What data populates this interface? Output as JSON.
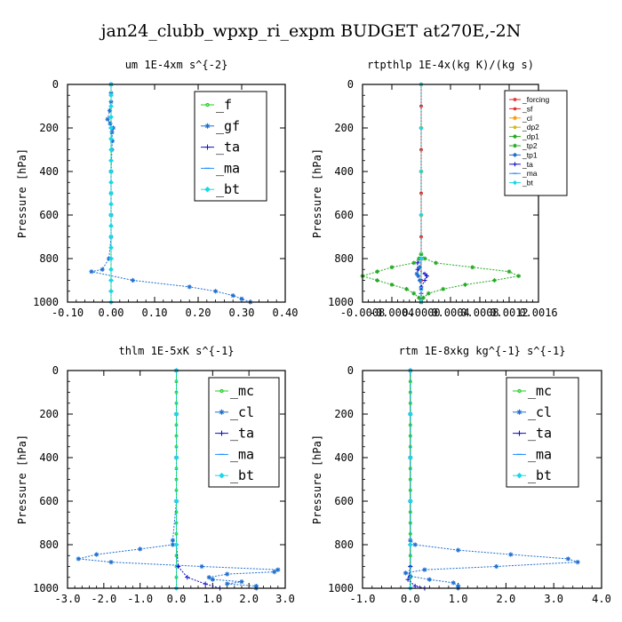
{
  "figure": {
    "title": "jan24_clubb_wpxp_ri_expm  BUDGET at270E,-2N"
  },
  "chart_data": [
    {
      "id": "um",
      "type": "line",
      "title": "um   1E-4xm s^{-2}",
      "ylabel": "Pressure [hPa]",
      "xlim": [
        -0.1,
        0.4
      ],
      "ylim": [
        1000,
        0
      ],
      "xticks": [
        "-0.10",
        "0.00",
        "0.10",
        "0.20",
        "0.30",
        "0.40"
      ],
      "xtick_values": [
        -0.1,
        0.0,
        0.1,
        0.2,
        0.3,
        0.4
      ],
      "yticks": [
        "0",
        "200",
        "400",
        "600",
        "800",
        "1000"
      ],
      "ytick_values": [
        0,
        200,
        400,
        600,
        800,
        1000
      ],
      "legend": {
        "style": "big",
        "placement": "top-right"
      },
      "series": [
        {
          "name": "_f",
          "color": "#22cc22",
          "marker": "circle",
          "p": [
            0,
            50,
            100,
            150,
            200,
            250,
            300,
            350,
            400,
            450,
            500,
            550,
            600,
            650,
            700,
            750,
            800,
            850,
            900,
            950,
            1000
          ],
          "v": [
            0,
            0,
            0,
            0,
            0,
            0,
            0,
            0,
            0,
            0,
            0,
            0,
            0,
            0,
            0,
            0,
            0,
            0,
            0,
            0,
            0
          ]
        },
        {
          "name": "_gf",
          "color": "#1e6fd0",
          "marker": "star",
          "p": [
            0,
            40,
            80,
            120,
            160,
            180,
            200,
            220,
            260,
            300,
            400,
            500,
            600,
            700,
            800,
            850,
            860,
            900,
            930,
            950,
            970,
            985,
            1000
          ],
          "v": [
            0.0,
            0.0,
            0.0,
            -0.003,
            -0.008,
            -0.002,
            0.005,
            0.002,
            0.003,
            0.002,
            0.0,
            0.0,
            0.0,
            0.0,
            -0.005,
            -0.02,
            -0.045,
            0.05,
            0.18,
            0.24,
            0.28,
            0.3,
            0.32
          ]
        },
        {
          "name": "_ta",
          "color": "#1010c8",
          "marker": "plus",
          "p": [
            0,
            200,
            400,
            600,
            800,
            900,
            950,
            1000
          ],
          "v": [
            0,
            0,
            0,
            0,
            0,
            0,
            0,
            0
          ]
        },
        {
          "name": "_ma",
          "color": "#1e90ff",
          "marker": "dash",
          "p": [
            0,
            200,
            400,
            600,
            800,
            900,
            1000
          ],
          "v": [
            0,
            0,
            0,
            0,
            0,
            0,
            0
          ]
        },
        {
          "name": "_bt",
          "color": "#18d8e8",
          "marker": "diamond",
          "p": [
            0,
            50,
            100,
            150,
            200,
            250,
            300,
            350,
            400,
            450,
            500,
            550,
            600,
            650,
            700,
            750,
            800,
            850,
            900,
            950,
            1000
          ],
          "v": [
            0,
            0,
            0,
            0,
            0,
            0,
            0,
            0,
            0,
            0,
            0,
            0,
            0,
            0,
            0,
            0,
            0,
            0,
            0,
            0,
            0
          ]
        }
      ]
    },
    {
      "id": "rtpthlp",
      "type": "line",
      "title": "rtpthlp   1E-4x(kg K)/(kg s)",
      "ylabel": "Pressure [hPa]",
      "xlim": [
        -0.0008,
        0.0016
      ],
      "ylim": [
        1000,
        0
      ],
      "xticks": [
        "-0.0008",
        "-0.0004",
        "0.0000",
        "0.0004",
        "0.0008",
        "0.0012",
        "0.0016"
      ],
      "xtick_values": [
        -0.0008,
        -0.0004,
        0.0,
        0.0004,
        0.0008,
        0.0012,
        0.0016
      ],
      "yticks": [
        "0",
        "200",
        "400",
        "600",
        "800",
        "1000"
      ],
      "ytick_values": [
        0,
        200,
        400,
        600,
        800,
        1000
      ],
      "legend": {
        "style": "small",
        "placement": "top-right"
      },
      "series": [
        {
          "name": "_forcing",
          "color": "#e02020",
          "marker": "circle",
          "p": [
            0,
            100,
            200,
            300,
            400,
            500,
            600,
            700,
            800,
            900,
            1000
          ],
          "v": [
            0,
            0,
            0,
            0,
            0,
            0,
            0,
            0,
            0,
            0,
            0
          ]
        },
        {
          "name": "_sf",
          "color": "#e02020",
          "marker": "circle",
          "p": [
            0,
            100,
            200,
            300,
            400,
            500,
            600,
            700,
            800,
            900,
            1000
          ],
          "v": [
            0,
            0,
            0,
            0,
            0,
            0,
            0,
            0,
            0,
            0,
            0
          ]
        },
        {
          "name": "_cl",
          "color": "#ff9900",
          "marker": "star",
          "p": [
            0,
            200,
            400,
            600,
            800,
            1000
          ],
          "v": [
            0,
            0,
            0,
            0,
            0,
            0
          ]
        },
        {
          "name": "_dp2",
          "color": "#c8b400",
          "marker": "circle",
          "p": [
            0,
            200,
            400,
            600,
            800,
            1000
          ],
          "v": [
            0,
            0,
            0,
            0,
            0,
            0
          ]
        },
        {
          "name": "_dp1",
          "color": "#22aa22",
          "marker": "star",
          "p": [
            780,
            800,
            820,
            840,
            860,
            880,
            900,
            920,
            940,
            960,
            980,
            1000
          ],
          "v": [
            0.0,
            5e-05,
            0.0002,
            0.0007,
            0.0012,
            0.00133,
            0.001,
            0.0006,
            0.0003,
            0.0001,
            3e-05,
            0.0
          ]
        },
        {
          "name": "_tp2",
          "color": "#22aa22",
          "marker": "star",
          "p": [
            780,
            800,
            820,
            840,
            860,
            880,
            900,
            920,
            940,
            960,
            980,
            1000
          ],
          "v": [
            0.0,
            -3e-05,
            -0.0001,
            -0.0004,
            -0.0006,
            -0.0008,
            -0.0006,
            -0.0004,
            -0.0002,
            -0.0001,
            -3e-05,
            0.0
          ]
        },
        {
          "name": "_tp1",
          "color": "#1e6fd0",
          "marker": "star",
          "p": [
            800,
            840,
            870,
            880,
            900,
            940,
            1000
          ],
          "v": [
            0.0,
            -2e-05,
            -6e-05,
            -4e-05,
            -2e-05,
            0.0,
            0.0
          ]
        },
        {
          "name": "_ta",
          "color": "#1010c8",
          "marker": "plus",
          "p": [
            800,
            820,
            850,
            870,
            880,
            900,
            930,
            960,
            1000
          ],
          "v": [
            0.0,
            -5e-05,
            -5e-05,
            5e-05,
            8e-05,
            5e-05,
            0.0,
            0.0,
            0.0
          ]
        },
        {
          "name": "_ma",
          "color": "#1e90ff",
          "marker": "dash",
          "p": [
            0,
            200,
            400,
            600,
            800,
            1000
          ],
          "v": [
            0,
            0,
            0,
            0,
            0,
            0
          ]
        },
        {
          "name": "_bt",
          "color": "#18d8e8",
          "marker": "diamond",
          "p": [
            0,
            200,
            400,
            600,
            800,
            1000
          ],
          "v": [
            0,
            0,
            0,
            0,
            0,
            0
          ]
        }
      ]
    },
    {
      "id": "thlm",
      "type": "line",
      "title": "thlm   1E-5xK s^{-1}",
      "ylabel": "Pressure [hPa]",
      "xlim": [
        -3.0,
        3.0
      ],
      "ylim": [
        1000,
        0
      ],
      "xticks": [
        "-3.0",
        "-2.0",
        "-1.0",
        "0.0",
        "1.0",
        "2.0",
        "3.0"
      ],
      "xtick_values": [
        -3.0,
        -2.0,
        -1.0,
        0.0,
        1.0,
        2.0,
        3.0
      ],
      "yticks": [
        "0",
        "200",
        "400",
        "600",
        "800",
        "1000"
      ],
      "ytick_values": [
        0,
        200,
        400,
        600,
        800,
        1000
      ],
      "legend": {
        "style": "big",
        "placement": "top-right"
      },
      "series": [
        {
          "name": "_mc",
          "color": "#22cc22",
          "marker": "circle",
          "p": [
            0,
            50,
            100,
            150,
            200,
            250,
            300,
            350,
            400,
            450,
            500,
            550,
            600,
            650,
            700,
            750,
            800,
            850,
            900,
            950,
            1000
          ],
          "v": [
            0,
            0,
            0,
            0,
            0,
            0,
            0,
            0,
            0,
            0,
            0,
            0,
            0,
            0,
            0,
            0,
            0,
            0,
            0,
            0,
            0
          ]
        },
        {
          "name": "_cl",
          "color": "#1e6fd0",
          "marker": "star",
          "p": [
            0,
            200,
            400,
            600,
            780,
            800,
            820,
            845,
            865,
            880,
            900,
            915,
            925,
            935,
            950,
            960,
            970,
            980,
            990,
            1000
          ],
          "v": [
            0.0,
            0.0,
            0.0,
            0.0,
            -0.1,
            -0.1,
            -1.0,
            -2.2,
            -2.7,
            -1.8,
            0.7,
            2.8,
            2.7,
            1.4,
            0.9,
            1.0,
            1.8,
            1.4,
            2.2,
            2.2
          ]
        },
        {
          "name": "_ta",
          "color": "#1010c8",
          "marker": "plus",
          "p": [
            0,
            200,
            400,
            600,
            800,
            900,
            950,
            980,
            1000
          ],
          "v": [
            0,
            0,
            0,
            0,
            0,
            0.05,
            0.3,
            0.8,
            1.2
          ]
        },
        {
          "name": "_ma",
          "color": "#1e90ff",
          "marker": "dash",
          "p": [
            0,
            200,
            400,
            600,
            800,
            1000
          ],
          "v": [
            0,
            0,
            0,
            0,
            0,
            0
          ]
        },
        {
          "name": "_bt",
          "color": "#18d8e8",
          "marker": "diamond",
          "p": [
            0,
            200,
            400,
            600,
            800,
            1000
          ],
          "v": [
            0,
            0,
            0,
            0,
            0,
            0
          ]
        }
      ]
    },
    {
      "id": "rtm",
      "type": "line",
      "title": "rtm   1E-8xkg kg^{-1} s^{-1}",
      "ylabel": "Pressure [hPa]",
      "xlim": [
        -1.0,
        4.0
      ],
      "ylim": [
        1000,
        0
      ],
      "xticks": [
        "-1.0",
        "0.0",
        "1.0",
        "2.0",
        "3.0",
        "4.0"
      ],
      "xtick_values": [
        -1.0,
        0.0,
        1.0,
        2.0,
        3.0,
        4.0
      ],
      "yticks": [
        "0",
        "200",
        "400",
        "600",
        "800",
        "1000"
      ],
      "ytick_values": [
        0,
        200,
        400,
        600,
        800,
        1000
      ],
      "legend": {
        "style": "big",
        "placement": "top-right"
      },
      "series": [
        {
          "name": "_mc",
          "color": "#22cc22",
          "marker": "circle",
          "p": [
            0,
            50,
            100,
            150,
            200,
            250,
            300,
            350,
            400,
            450,
            500,
            550,
            600,
            650,
            700,
            750,
            800,
            850,
            900,
            950,
            1000
          ],
          "v": [
            0,
            0,
            0,
            0,
            0,
            0,
            0,
            0,
            0,
            0,
            0,
            0,
            0,
            0,
            0,
            0,
            0,
            0,
            0,
            0,
            0
          ]
        },
        {
          "name": "_cl",
          "color": "#1e6fd0",
          "marker": "star",
          "p": [
            0,
            200,
            400,
            600,
            780,
            800,
            825,
            845,
            865,
            880,
            900,
            915,
            930,
            945,
            960,
            975,
            990,
            1000
          ],
          "v": [
            0.0,
            0.0,
            0.0,
            0.0,
            0.0,
            0.1,
            1.0,
            2.1,
            3.3,
            3.5,
            1.8,
            0.3,
            -0.1,
            0.0,
            0.4,
            0.9,
            1.0,
            1.0
          ]
        },
        {
          "name": "_ta",
          "color": "#1010c8",
          "marker": "plus",
          "p": [
            0,
            200,
            400,
            600,
            800,
            900,
            960,
            990,
            1000
          ],
          "v": [
            0,
            0,
            0,
            0,
            0,
            0,
            -0.05,
            0.1,
            0.3
          ]
        },
        {
          "name": "_ma",
          "color": "#1e90ff",
          "marker": "dash",
          "p": [
            0,
            200,
            400,
            600,
            800,
            1000
          ],
          "v": [
            0,
            0,
            0,
            0,
            0,
            0
          ]
        },
        {
          "name": "_bt",
          "color": "#18d8e8",
          "marker": "diamond",
          "p": [
            0,
            200,
            400,
            600,
            800,
            1000
          ],
          "v": [
            0,
            0,
            0,
            0,
            0,
            0
          ]
        }
      ]
    }
  ]
}
